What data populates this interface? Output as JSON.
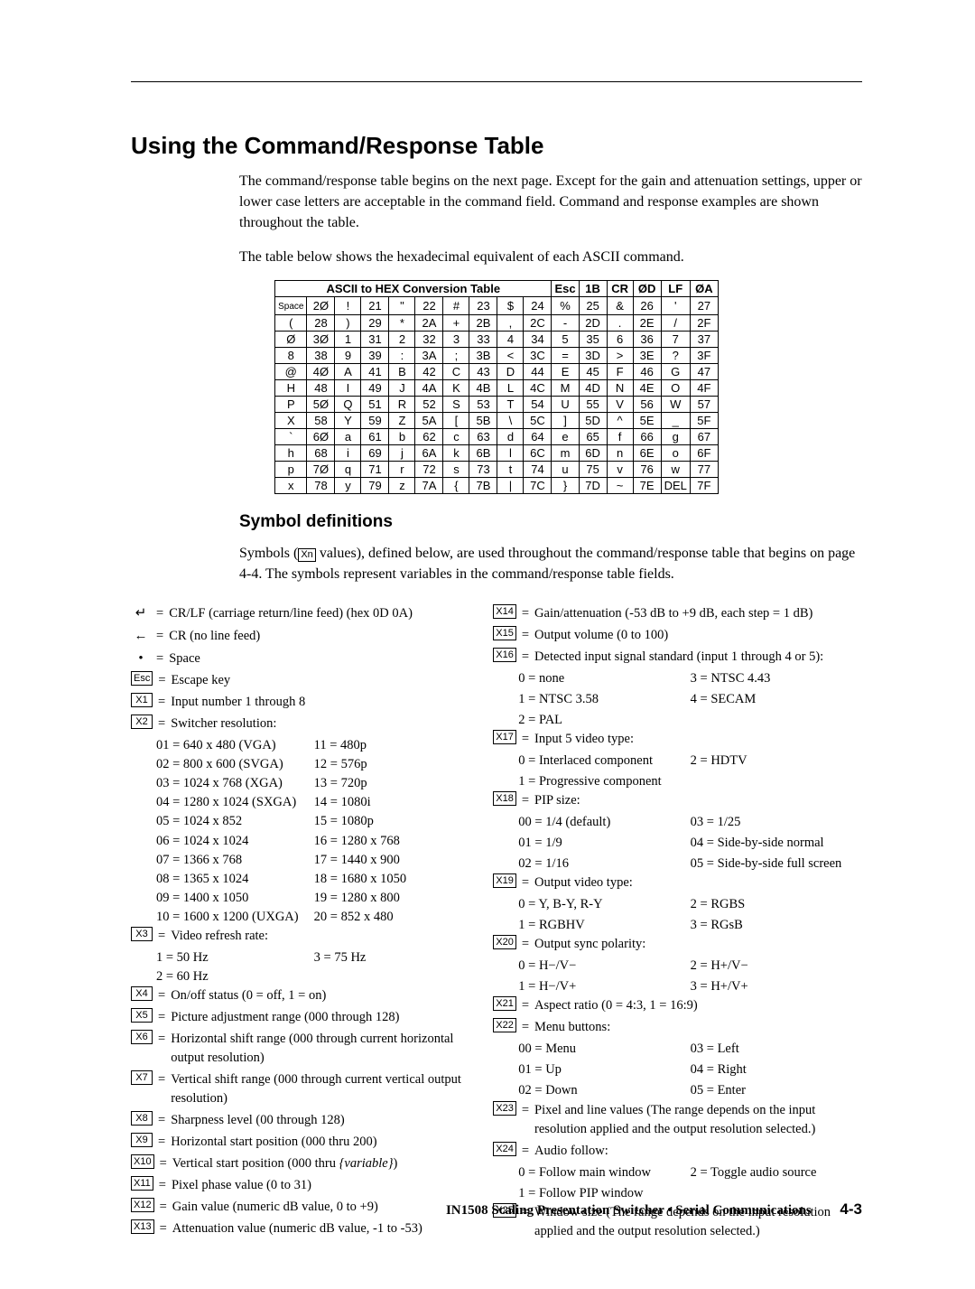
{
  "title": "Using the Command/Response Table",
  "intro1": "The command/response table begins on the next page.  Except for the gain and attenuation settings, upper or lower case letters are acceptable in the command field.  Command and response examples are shown throughout the table.",
  "intro2": "The table below shows the hexadecimal equivalent of each ASCII command.",
  "asciiTitle1": "ASCII to HEX  Conversion Table",
  "asciiHeader2": [
    "Esc",
    "1B",
    "CR",
    "ØD",
    "LF",
    "ØA"
  ],
  "asciiRows": [
    [
      "Space",
      "2Ø",
      "!",
      "21",
      "\"",
      "22",
      "#",
      "23",
      "$",
      "24",
      "%",
      "25",
      "&",
      "26",
      "'",
      "27"
    ],
    [
      "(",
      "28",
      ")",
      "29",
      "*",
      "2A",
      "+",
      "2B",
      ",",
      "2C",
      "-",
      "2D",
      ".",
      "2E",
      "/",
      "2F"
    ],
    [
      "Ø",
      "3Ø",
      "1",
      "31",
      "2",
      "32",
      "3",
      "33",
      "4",
      "34",
      "5",
      "35",
      "6",
      "36",
      "7",
      "37"
    ],
    [
      "8",
      "38",
      "9",
      "39",
      ":",
      "3A",
      ";",
      "3B",
      "<",
      "3C",
      "=",
      "3D",
      ">",
      "3E",
      "?",
      "3F"
    ],
    [
      "@",
      "4Ø",
      "A",
      "41",
      "B",
      "42",
      "C",
      "43",
      "D",
      "44",
      "E",
      "45",
      "F",
      "46",
      "G",
      "47"
    ],
    [
      "H",
      "48",
      "I",
      "49",
      "J",
      "4A",
      "K",
      "4B",
      "L",
      "4C",
      "M",
      "4D",
      "N",
      "4E",
      "O",
      "4F"
    ],
    [
      "P",
      "5Ø",
      "Q",
      "51",
      "R",
      "52",
      "S",
      "53",
      "T",
      "54",
      "U",
      "55",
      "V",
      "56",
      "W",
      "57"
    ],
    [
      "X",
      "58",
      "Y",
      "59",
      "Z",
      "5A",
      "[",
      "5B",
      "\\",
      "5C",
      "]",
      "5D",
      "^",
      "5E",
      "_",
      "5F"
    ],
    [
      "`",
      "6Ø",
      "a",
      "61",
      "b",
      "62",
      "c",
      "63",
      "d",
      "64",
      "e",
      "65",
      "f",
      "66",
      "g",
      "67"
    ],
    [
      "h",
      "68",
      "i",
      "69",
      "j",
      "6A",
      "k",
      "6B",
      "l",
      "6C",
      "m",
      "6D",
      "n",
      "6E",
      "o",
      "6F"
    ],
    [
      "p",
      "7Ø",
      "q",
      "71",
      "r",
      "72",
      "s",
      "73",
      "t",
      "74",
      "u",
      "75",
      "v",
      "76",
      "w",
      "77"
    ],
    [
      "x",
      "78",
      "y",
      "79",
      "z",
      "7A",
      "{",
      "7B",
      "|",
      "7C",
      "}",
      "7D",
      "~",
      "7E",
      "DEL",
      "7F"
    ]
  ],
  "symHeading": "Symbol definitions",
  "symIntro": "Symbols ( Xn  values), defined below, are used throughout the command/response table that begins on page 4-4.  The symbols represent variables in the command/response table fields.",
  "left": [
    {
      "icon": "↵",
      "text": "CR/LF (carriage return/line feed) (hex 0D 0A)"
    },
    {
      "icon": "←",
      "text": "CR (no line feed)"
    },
    {
      "icon": "•",
      "text": "Space"
    },
    {
      "box": "Esc",
      "text": "Escape key"
    },
    {
      "box": "X1",
      "text": "Input number 1 through 8"
    },
    {
      "box": "X2",
      "text": "Switcher resolution:",
      "sub2": [
        [
          "01  =  640 x 480 (VGA)",
          "11  =  480p"
        ],
        [
          "02  =  800 x 600 (SVGA)",
          "12  =  576p"
        ],
        [
          "03  =  1024 x 768 (XGA)",
          "13  =  720p"
        ],
        [
          "04  =  1280 x 1024 (SXGA)",
          "14  =  1080i"
        ],
        [
          "05  =  1024 x 852",
          "15  =  1080p"
        ],
        [
          "06  =  1024 x 1024",
          "16  =  1280 x 768"
        ],
        [
          "07  =  1366 x 768",
          "17  =  1440 x 900"
        ],
        [
          "08  =  1365 x 1024",
          "18  =  1680 x 1050"
        ],
        [
          "09  =  1400 x 1050",
          "19  =  1280 x 800"
        ],
        [
          "10  =  1600 x 1200 (UXGA)",
          "20  =  852 x 480"
        ]
      ]
    },
    {
      "box": "X3",
      "text": "Video refresh rate:",
      "sub2": [
        [
          "1    =  50 Hz",
          "3    =  75 Hz"
        ],
        [
          "2    =  60 Hz",
          ""
        ]
      ]
    },
    {
      "box": "X4",
      "text": "On/off status (0 = off, 1 = on)"
    },
    {
      "box": "X5",
      "text": "Picture adjustment range (000 through 128)"
    },
    {
      "box": "X6",
      "text": "Horizontal shift range (000 through current horizontal output resolution)"
    },
    {
      "box": "X7",
      "text": "Vertical shift range (000 through current vertical output resolution)"
    },
    {
      "box": "X8",
      "text": "Sharpness level (00 through 128)"
    },
    {
      "box": "X9",
      "text": "Horizontal start position (000 thru 200)"
    },
    {
      "box": "X10",
      "text": "Vertical start position (000 thru {variable})",
      "italicEnd": true
    },
    {
      "box": "X11",
      "text": "Pixel phase value (0 to 31)"
    },
    {
      "box": "X12",
      "text": "Gain value (numeric dB value, 0 to +9)"
    },
    {
      "box": "X13",
      "text": "Attenuation value (numeric dB value, -1 to -53)"
    }
  ],
  "right": [
    {
      "box": "X14",
      "text": "Gain/attenuation (-53 dB to +9 dB, each step = 1 dB)"
    },
    {
      "box": "X15",
      "text": "Output volume (0 to 100)"
    },
    {
      "box": "X16",
      "text": "Detected input signal standard (input 1 through 4 or 5):",
      "pairs": [
        [
          "0  =  none",
          "3  =  NTSC 4.43"
        ],
        [
          "1  =  NTSC 3.58",
          "4  =  SECAM"
        ],
        [
          "2  =  PAL",
          ""
        ]
      ]
    },
    {
      "box": "X17",
      "text": "Input 5 video type:",
      "pairs": [
        [
          "0 =  Interlaced component",
          "2  =  HDTV"
        ],
        [
          "1 =  Progressive component",
          ""
        ]
      ]
    },
    {
      "box": "X18",
      "text": "PIP size:",
      "pairs": [
        [
          "00  =  1/4 (default)",
          "03  =  1/25"
        ],
        [
          "01  =  1/9",
          "04  =  Side-by-side normal"
        ],
        [
          "02  =  1/16",
          "05  =  Side-by-side full screen"
        ]
      ]
    },
    {
      "box": "X19",
      "text": "Output video type:",
      "pairs": [
        [
          "0 =  Y, B-Y, R-Y",
          "2  =  RGBS"
        ],
        [
          "1 =  RGBHV",
          "3  =  RGsB"
        ]
      ]
    },
    {
      "box": "X20",
      "text": "Output sync polarity:",
      "pairs": [
        [
          "0 =  H−/V−",
          "2  =  H+/V−"
        ],
        [
          "1 =  H−/V+",
          "3  =  H+/V+"
        ]
      ]
    },
    {
      "box": "X21",
      "text": "Aspect ratio (0 = 4:3, 1 = 16:9)"
    },
    {
      "box": "X22",
      "text": "Menu buttons:",
      "pairs": [
        [
          "00 = Menu",
          "03 = Left"
        ],
        [
          "01 = Up",
          "04 = Right"
        ],
        [
          "02 = Down",
          "05 = Enter"
        ]
      ]
    },
    {
      "box": "X23",
      "text": "Pixel and line values (The range depends on the input resolution applied and the output resolution selected.)"
    },
    {
      "box": "X24",
      "text": "Audio follow:",
      "pairs": [
        [
          "0 =  Follow main window",
          "2  =  Toggle audio source"
        ],
        [
          "1 =  Follow PIP window",
          ""
        ]
      ]
    },
    {
      "box": "X25",
      "text": "Window size (The range depends on the input resolution applied and the output resolution selected.)"
    }
  ],
  "footer": {
    "product": "IN1508 Scaling Presentation Switcher • Serial Communications",
    "page": "4-3"
  }
}
